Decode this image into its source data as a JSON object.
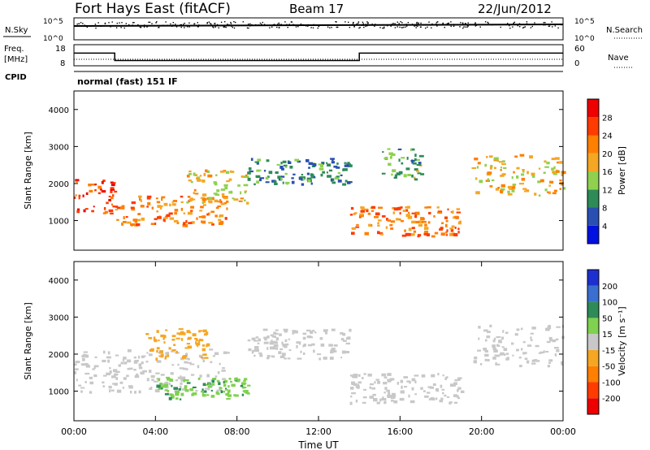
{
  "header": {
    "title": "Fort Hays East (fitACF)",
    "beam": "Beam 17",
    "date": "22/Jun/2012"
  },
  "noise_panel": {
    "left_label": "N.Sky",
    "right_label": "N.Search",
    "left_ticks": [
      "10^5",
      "10^0"
    ],
    "right_ticks": [
      "10^5",
      "10^0"
    ]
  },
  "freq_panel": {
    "left_label_1": "Freq.",
    "left_label_2": "[MHz]",
    "right_label": "Nave",
    "left_ticks": [
      "18",
      "8"
    ],
    "right_ticks": [
      "60",
      "0"
    ]
  },
  "cpid": {
    "label": "CPID",
    "value": "normal (fast) 151 IF"
  },
  "colors": {
    "power": [
      "#0010e0",
      "#2a4fb3",
      "#2e8b57",
      "#8fd14f",
      "#f5a623",
      "#ff7f00",
      "#ff3b00",
      "#ee0000"
    ],
    "velocity": [
      "#1e2fd0",
      "#3a6ecf",
      "#2e8b57",
      "#7fd14f",
      "#c8c8c8",
      "#f5a623",
      "#ff7f00",
      "#ff3b00",
      "#ee0000"
    ]
  },
  "chart_data": [
    {
      "type": "line",
      "name": "frequency",
      "x": [
        0,
        2,
        2,
        14,
        14,
        24
      ],
      "y": [
        14,
        14,
        10.5,
        10.5,
        14,
        14
      ],
      "xlim": [
        0,
        24
      ],
      "ylim": [
        8,
        18
      ]
    },
    {
      "type": "heatmap",
      "name": "power",
      "ylabel": "Slant Range [km]",
      "yticks": [
        "1000",
        "2000",
        "3000",
        "4000"
      ],
      "colorbar": {
        "label": "Power [dB]",
        "ticks": [
          "4",
          "8",
          "12",
          "16",
          "20",
          "24",
          "28"
        ]
      },
      "xlim": [
        0,
        24
      ],
      "ylim": [
        200,
        4500
      ],
      "bands": [
        {
          "t": [
            0,
            2
          ],
          "r": [
            1200,
            2150
          ],
          "level": 26
        },
        {
          "t": [
            2,
            7.5
          ],
          "r": [
            900,
            1700
          ],
          "level": 21
        },
        {
          "t": [
            5.5,
            8.5
          ],
          "r": [
            1500,
            2400
          ],
          "level": 17
        },
        {
          "t": [
            8.5,
            13.5
          ],
          "r": [
            2000,
            2700
          ],
          "level": 9
        },
        {
          "t": [
            13.5,
            19
          ],
          "r": [
            600,
            1400
          ],
          "level": 22
        },
        {
          "t": [
            15,
            17
          ],
          "r": [
            2100,
            3000
          ],
          "level": 12
        },
        {
          "t": [
            19.5,
            24
          ],
          "r": [
            1700,
            2800
          ],
          "level": 18
        }
      ]
    },
    {
      "type": "heatmap",
      "name": "velocity",
      "ylabel": "Slant Range [km]",
      "yticks": [
        "1000",
        "2000",
        "3000",
        "4000"
      ],
      "colorbar": {
        "label": "Velocity [m s⁻¹]",
        "ticks": [
          "200",
          "100",
          "50",
          "15",
          "-15",
          "-50",
          "-100",
          "-200"
        ]
      },
      "xticks": [
        "00:00",
        "04:00",
        "08:00",
        "12:00",
        "16:00",
        "20:00",
        "00:00"
      ],
      "xlabel": "Time UT",
      "xlim": [
        0,
        24
      ],
      "ylim": [
        200,
        4500
      ],
      "bands": [
        {
          "t": [
            0,
            7.5
          ],
          "r": [
            1000,
            2150
          ],
          "level": -5
        },
        {
          "t": [
            3.5,
            6.5
          ],
          "r": [
            1900,
            2700
          ],
          "level": -40
        },
        {
          "t": [
            4,
            8.5
          ],
          "r": [
            800,
            1400
          ],
          "level": 45
        },
        {
          "t": [
            8.5,
            13.5
          ],
          "r": [
            1900,
            2700
          ],
          "level": 0
        },
        {
          "t": [
            13.5,
            19
          ],
          "r": [
            700,
            1500
          ],
          "level": -5
        },
        {
          "t": [
            19.5,
            24
          ],
          "r": [
            1700,
            2800
          ],
          "level": -5
        }
      ]
    }
  ]
}
